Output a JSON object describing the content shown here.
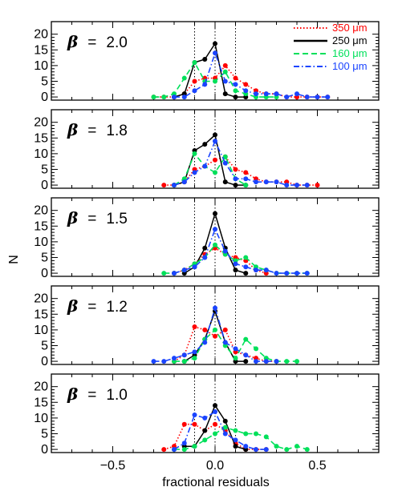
{
  "figure": {
    "xlabel": "fractional residuals",
    "ylabel": "N",
    "beta_symbol": "β",
    "equals": "="
  },
  "chart_data": {
    "type": "line",
    "xlabel": "fractional residuals",
    "ylabel": "N",
    "xlim": [
      -0.8,
      0.8
    ],
    "ylim": [
      -1,
      24
    ],
    "xticks": [
      -0.5,
      0.0,
      0.5
    ],
    "xtick_labels": [
      "−0.5",
      "0.0",
      "0.5"
    ],
    "yticks": [
      0,
      5,
      10,
      15,
      20
    ],
    "ytick_labels": [
      "0",
      "5",
      "10",
      "15",
      "20"
    ],
    "reference_lines_x": [
      -0.1,
      0.0,
      0.1
    ],
    "legend": {
      "placement": "top-right",
      "entries": [
        {
          "label": "350 μm",
          "color": "#ff0000",
          "dash": "dotted"
        },
        {
          "label": "250 μm",
          "color": "#000000",
          "dash": "solid"
        },
        {
          "label": "160 μm",
          "color": "#00e05a",
          "dash": "dashed"
        },
        {
          "label": "100 μm",
          "color": "#1a44ff",
          "dash": "dashdot"
        }
      ]
    },
    "panels": [
      {
        "beta": "2.0",
        "series": [
          {
            "name": "350 μm",
            "x": [
              -0.3,
              -0.25,
              -0.2,
              -0.15,
              -0.1,
              -0.05,
              0,
              0.05,
              0.1,
              0.15,
              0.2,
              0.25,
              0.3,
              0.35,
              0.4,
              0.45,
              0.5,
              0.55
            ],
            "y": [
              0,
              0,
              0,
              1,
              5,
              6,
              6,
              10,
              6,
              4,
              2,
              1,
              1,
              0,
              0,
              0,
              0,
              0
            ]
          },
          {
            "name": "250 μm",
            "x": [
              -0.2,
              -0.15,
              -0.1,
              -0.05,
              0,
              0.05,
              0.1,
              0.15
            ],
            "y": [
              0,
              1,
              11,
              12,
              17,
              1,
              0,
              0
            ]
          },
          {
            "name": "160 μm",
            "x": [
              -0.3,
              -0.25,
              -0.2,
              -0.15,
              -0.1,
              -0.05,
              0,
              0.05,
              0.1,
              0.15,
              0.2,
              0.25,
              0.3
            ],
            "y": [
              0,
              0,
              1,
              6,
              11,
              5,
              5,
              8,
              2,
              1,
              0,
              0,
              0
            ]
          },
          {
            "name": "100 μm",
            "x": [
              -0.2,
              -0.15,
              -0.1,
              -0.05,
              0,
              0.05,
              0.1,
              0.15,
              0.2,
              0.25,
              0.3,
              0.35,
              0.4,
              0.45,
              0.5,
              0.55
            ],
            "y": [
              0,
              0,
              2,
              4,
              14,
              5,
              4,
              2,
              1,
              1,
              1,
              0,
              1,
              0,
              0,
              0
            ]
          }
        ]
      },
      {
        "beta": "1.8",
        "series": [
          {
            "name": "350 μm",
            "x": [
              -0.25,
              -0.2,
              -0.15,
              -0.1,
              -0.05,
              0,
              0.05,
              0.1,
              0.15,
              0.2,
              0.25,
              0.3,
              0.35,
              0.4,
              0.45,
              0.5
            ],
            "y": [
              0,
              0,
              1,
              5,
              6,
              8,
              9,
              5,
              4,
              2,
              1,
              1,
              1,
              0,
              0,
              0
            ]
          },
          {
            "name": "250 μm",
            "x": [
              -0.2,
              -0.15,
              -0.1,
              -0.05,
              0,
              0.05,
              0.1,
              0.15
            ],
            "y": [
              0,
              1,
              11,
              13,
              16,
              1,
              0,
              0
            ]
          },
          {
            "name": "160 μm",
            "x": [
              -0.2,
              -0.15,
              -0.1,
              -0.05,
              0,
              0.05,
              0.1,
              0.15
            ],
            "y": [
              0,
              2,
              10,
              6,
              4,
              9,
              2,
              0
            ]
          },
          {
            "name": "100 μm",
            "x": [
              -0.2,
              -0.15,
              -0.1,
              -0.05,
              0,
              0.05,
              0.1,
              0.15,
              0.2,
              0.25,
              0.3,
              0.35,
              0.4,
              0.45
            ],
            "y": [
              0,
              1,
              4,
              6,
              14,
              7,
              2,
              2,
              1,
              1,
              1,
              0,
              0,
              0
            ]
          }
        ]
      },
      {
        "beta": "1.5",
        "series": [
          {
            "name": "350 μm",
            "x": [
              -0.2,
              -0.15,
              -0.1,
              -0.05,
              0,
              0.05,
              0.1,
              0.15,
              0.2,
              0.25
            ],
            "y": [
              0,
              1,
              3,
              6,
              8,
              6,
              5,
              4,
              1,
              0
            ]
          },
          {
            "name": "250 μm",
            "x": [
              -0.15,
              -0.1,
              -0.05,
              0,
              0.05,
              0.1,
              0.15
            ],
            "y": [
              0,
              2,
              8,
              19,
              8,
              1,
              0
            ]
          },
          {
            "name": "160 μm",
            "x": [
              -0.25,
              -0.2,
              -0.15,
              -0.1,
              -0.05,
              0,
              0.05,
              0.1,
              0.15,
              0.2,
              0.25,
              0.3,
              0.35,
              0.4,
              0.45
            ],
            "y": [
              0,
              0,
              1,
              3,
              5,
              9,
              6,
              4,
              5,
              2,
              1,
              0,
              0,
              0,
              0
            ]
          },
          {
            "name": "100 μm",
            "x": [
              -0.2,
              -0.15,
              -0.1,
              -0.05,
              0,
              0.05,
              0.1,
              0.15,
              0.2,
              0.25,
              0.3,
              0.35,
              0.4,
              0.45
            ],
            "y": [
              0,
              1,
              2,
              5,
              14,
              7,
              3,
              2,
              1,
              1,
              0,
              0,
              0,
              0
            ]
          }
        ]
      },
      {
        "beta": "1.2",
        "series": [
          {
            "name": "350 μm",
            "x": [
              -0.2,
              -0.15,
              -0.1,
              -0.05,
              0,
              0.05,
              0.1,
              0.15,
              0.2,
              0.25,
              0.3
            ],
            "y": [
              0,
              2,
              11,
              10,
              8,
              10,
              3,
              2,
              1,
              0,
              0
            ]
          },
          {
            "name": "250 μm",
            "x": [
              -0.15,
              -0.1,
              -0.05,
              0,
              0.05,
              0.1,
              0.15
            ],
            "y": [
              0,
              2,
              7,
              16,
              6,
              0,
              0
            ]
          },
          {
            "name": "160 μm",
            "x": [
              -0.2,
              -0.15,
              -0.1,
              -0.05,
              0,
              0.05,
              0.1,
              0.15,
              0.2,
              0.25,
              0.3,
              0.35,
              0.4
            ],
            "y": [
              0,
              0,
              1,
              7,
              10,
              5,
              1,
              7,
              4,
              1,
              0,
              0,
              0
            ]
          },
          {
            "name": "100 μm",
            "x": [
              -0.3,
              -0.25,
              -0.2,
              -0.15,
              -0.1,
              -0.05,
              0,
              0.05,
              0.1,
              0.15,
              0.2,
              0.25,
              0.3
            ],
            "y": [
              0,
              0,
              1,
              2,
              3,
              6,
              17,
              6,
              4,
              2,
              0,
              0,
              0
            ]
          }
        ]
      },
      {
        "beta": "1.0",
        "series": [
          {
            "name": "350 μm",
            "x": [
              -0.25,
              -0.2,
              -0.15,
              -0.1,
              -0.05,
              0,
              0.05,
              0.1,
              0.15,
              0.2,
              0.25
            ],
            "y": [
              0,
              1,
              8,
              8,
              6,
              8,
              6,
              2,
              0,
              0,
              0
            ]
          },
          {
            "name": "250 μm",
            "x": [
              -0.15,
              -0.1,
              -0.05,
              0,
              0.05,
              0.1,
              0.15
            ],
            "y": [
              1,
              1,
              6,
              14,
              9,
              1,
              0
            ]
          },
          {
            "name": "160 μm",
            "x": [
              -0.2,
              -0.15,
              -0.1,
              -0.05,
              0,
              0.05,
              0.1,
              0.15,
              0.2,
              0.25,
              0.3,
              0.35,
              0.4,
              0.45
            ],
            "y": [
              0,
              0,
              1,
              3,
              5,
              7,
              6,
              5,
              5,
              4,
              1,
              0,
              1,
              0
            ]
          },
          {
            "name": "100 μm",
            "x": [
              -0.2,
              -0.15,
              -0.1,
              -0.05,
              0,
              0.05,
              0.1,
              0.15,
              0.2,
              0.25
            ],
            "y": [
              0,
              2,
              11,
              10,
              12,
              5,
              3,
              1,
              0,
              0
            ]
          }
        ]
      }
    ]
  }
}
